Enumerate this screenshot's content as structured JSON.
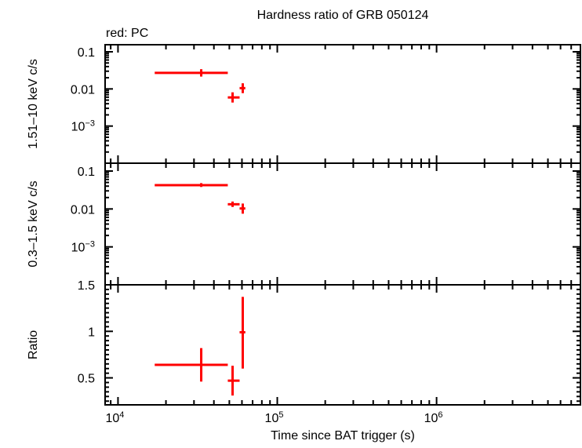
{
  "chart_data": {
    "type": "scatter",
    "title": "Hardness ratio of GRB 050124",
    "subtitle": "red: PC",
    "xlabel": "Time since BAT trigger (s)",
    "xscale": "log",
    "xlim": [
      8300,
      8000000
    ],
    "xticks": [
      {
        "v": 10000,
        "base": "10",
        "exp": "4"
      },
      {
        "v": 100000,
        "base": "10",
        "exp": "5"
      },
      {
        "v": 1000000,
        "base": "10",
        "exp": "6"
      }
    ],
    "series_color": "#ff0000",
    "panels": [
      {
        "ylabel": "1.51–10 keV c/s",
        "yscale": "log",
        "ylim": [
          0.0001,
          0.155
        ],
        "yticks": [
          {
            "v": 0.1,
            "label": "0.1"
          },
          {
            "v": 0.01,
            "label": "0.01"
          },
          {
            "v": 0.001,
            "label": "10",
            "exp": "−3"
          }
        ],
        "points": [
          {
            "x": 33300,
            "xlo": 17000,
            "xhi": 48900,
            "y": 0.027,
            "ylo": 0.0215,
            "yhi": 0.034
          },
          {
            "x": 52400,
            "xlo": 48900,
            "xhi": 58000,
            "y": 0.0059,
            "ylo": 0.0043,
            "yhi": 0.0081
          },
          {
            "x": 60700,
            "xlo": 58000,
            "xhi": 63000,
            "y": 0.0105,
            "ylo": 0.0077,
            "yhi": 0.0142
          }
        ]
      },
      {
        "ylabel": "0.3–1.5 keV c/s",
        "yscale": "log",
        "ylim": [
          0.0001,
          0.161
        ],
        "yticks": [
          {
            "v": 0.1,
            "label": "0.1"
          },
          {
            "v": 0.01,
            "label": "0.01"
          },
          {
            "v": 0.001,
            "label": "10",
            "exp": "−3"
          }
        ],
        "points": [
          {
            "x": 33300,
            "xlo": 17000,
            "xhi": 48900,
            "y": 0.0425,
            "ylo": 0.038,
            "yhi": 0.048
          },
          {
            "x": 52400,
            "xlo": 48900,
            "xhi": 58000,
            "y": 0.0133,
            "ylo": 0.0113,
            "yhi": 0.0157
          },
          {
            "x": 60700,
            "xlo": 58000,
            "xhi": 63000,
            "y": 0.0103,
            "ylo": 0.0075,
            "yhi": 0.0139
          }
        ]
      },
      {
        "ylabel": "Ratio",
        "yscale": "linear",
        "ylim": [
          0.21,
          1.5
        ],
        "yticks": [
          {
            "v": 1.5,
            "label": "1.5"
          },
          {
            "v": 1,
            "label": "1"
          },
          {
            "v": 0.5,
            "label": "0.5"
          }
        ],
        "points": [
          {
            "x": 33300,
            "xlo": 17000,
            "xhi": 48900,
            "y": 0.64,
            "ylo": 0.46,
            "yhi": 0.82
          },
          {
            "x": 52400,
            "xlo": 48900,
            "xhi": 58000,
            "y": 0.47,
            "ylo": 0.31,
            "yhi": 0.63
          },
          {
            "x": 60700,
            "xlo": 58000,
            "xhi": 63000,
            "y": 0.99,
            "ylo": 0.6,
            "yhi": 1.37
          }
        ]
      }
    ]
  }
}
